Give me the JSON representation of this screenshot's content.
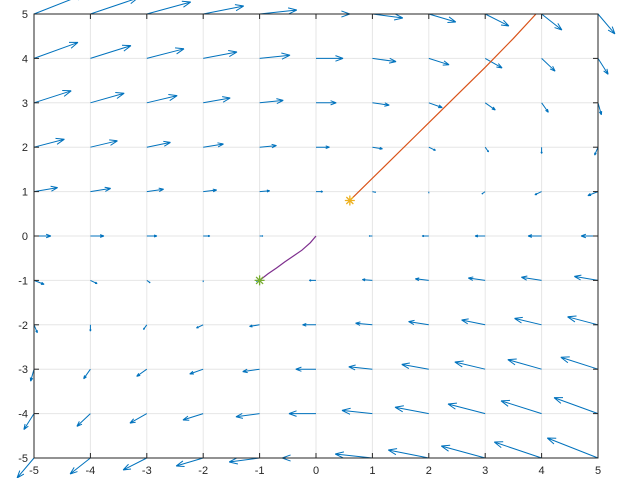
{
  "chart_data": {
    "type": "quiver",
    "title": "",
    "xlabel": "",
    "ylabel": "",
    "xlim": [
      -5,
      5
    ],
    "ylim": [
      -5,
      5
    ],
    "grid": true,
    "xticks": [
      -5,
      -4,
      -3,
      -2,
      -1,
      0,
      1,
      2,
      3,
      4,
      5
    ],
    "yticks": [
      -5,
      -4,
      -3,
      -2,
      -1,
      0,
      1,
      2,
      3,
      4,
      5
    ],
    "xtick_labels": [
      "-5",
      "-4",
      "-3",
      "-2",
      "-1",
      "0",
      "1",
      "2",
      "3",
      "4",
      "5"
    ],
    "ytick_labels": [
      "-5",
      "-4",
      "-3",
      "-2",
      "-1",
      "0",
      "1",
      "2",
      "3",
      "4",
      "5"
    ],
    "vector_field": {
      "grid_x": [
        -5,
        -4,
        -3,
        -2,
        -1,
        0,
        1,
        2,
        3,
        4,
        5
      ],
      "grid_y": [
        -5,
        -4,
        -3,
        -2,
        -1,
        0,
        1,
        2,
        3,
        4,
        5
      ],
      "color": "#0072BD",
      "field_model": "u = y - 0.5*x, v = -0.9*x*y/6 (approximate, tangent to trajectories)",
      "arrow_scale": 0.12
    },
    "series": [
      {
        "type": "line",
        "color": "#D95319",
        "x": [
          0.6,
          1.2,
          1.8,
          2.4,
          3.0,
          3.5,
          3.9
        ],
        "y": [
          0.8,
          1.55,
          2.3,
          3.05,
          3.8,
          4.45,
          5.0
        ]
      },
      {
        "type": "line",
        "color": "#7E2F8E",
        "x": [
          -1.0,
          -0.85,
          -0.7,
          -0.55,
          -0.4,
          -0.25,
          -0.1,
          0.0
        ],
        "y": [
          -1.0,
          -0.85,
          -0.72,
          -0.58,
          -0.45,
          -0.32,
          -0.15,
          0.0
        ]
      },
      {
        "type": "marker",
        "marker": "asterisk",
        "color": "#EDB120",
        "x": [
          0.6
        ],
        "y": [
          0.8
        ]
      },
      {
        "type": "marker",
        "marker": "asterisk",
        "color": "#77AC30",
        "x": [
          -1.0
        ],
        "y": [
          -1.0
        ]
      }
    ]
  }
}
